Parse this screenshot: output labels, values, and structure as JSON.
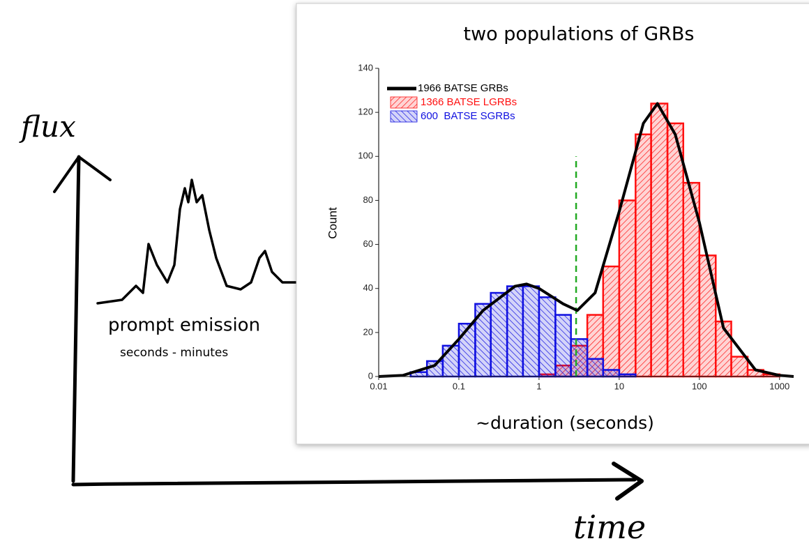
{
  "sketch": {
    "y_label": "flux",
    "x_label": "time",
    "phase": "prompt emission",
    "duration": "seconds - minutes"
  },
  "chart_data": {
    "type": "histogram",
    "title": "two populations of GRBs",
    "x_label": "~duration (seconds)",
    "y_label": "Count",
    "xscale": "log",
    "xlim": [
      0.01,
      1500
    ],
    "ylim": [
      0,
      140
    ],
    "xticks": [
      0.01,
      0.1,
      1,
      10,
      100,
      1000
    ],
    "yticks": [
      0,
      20,
      40,
      60,
      80,
      100,
      120,
      140
    ],
    "bins": [
      0.01,
      0.016,
      0.025,
      0.04,
      0.063,
      0.1,
      0.16,
      0.25,
      0.4,
      0.63,
      1,
      1.6,
      2.5,
      4,
      6.3,
      10,
      16,
      25,
      40,
      63,
      100,
      160,
      250,
      400,
      630,
      1000,
      1600
    ],
    "series": [
      {
        "name": "1366 BATSE LGRBs",
        "color": "#ff1010",
        "values": [
          0,
          0,
          0,
          0,
          0,
          0,
          0,
          0,
          0,
          0,
          1,
          5,
          14,
          28,
          50,
          80,
          110,
          124,
          115,
          88,
          55,
          25,
          9,
          3,
          1,
          0
        ]
      },
      {
        "name": "600  BATSE SGRBs",
        "color": "#1010e0",
        "values": [
          0,
          0,
          2,
          7,
          14,
          24,
          33,
          38,
          41,
          41,
          36,
          28,
          17,
          8,
          3,
          1,
          0,
          0,
          0,
          0,
          0,
          0,
          0,
          0,
          0,
          0
        ]
      }
    ],
    "curve": {
      "name": "1966 BATSE GRBs",
      "color": "#000000",
      "x": [
        0.01,
        0.02,
        0.05,
        0.1,
        0.2,
        0.5,
        0.7,
        1,
        2,
        3,
        5,
        10,
        20,
        30,
        50,
        100,
        200,
        500,
        1000,
        1500
      ],
      "values": [
        0,
        0.5,
        5,
        17,
        30,
        41,
        42,
        40,
        33,
        30,
        38,
        75,
        115,
        124,
        110,
        70,
        22,
        3,
        0.5,
        0
      ]
    },
    "threshold": {
      "x": 2.9,
      "color": "#22aa22"
    }
  }
}
